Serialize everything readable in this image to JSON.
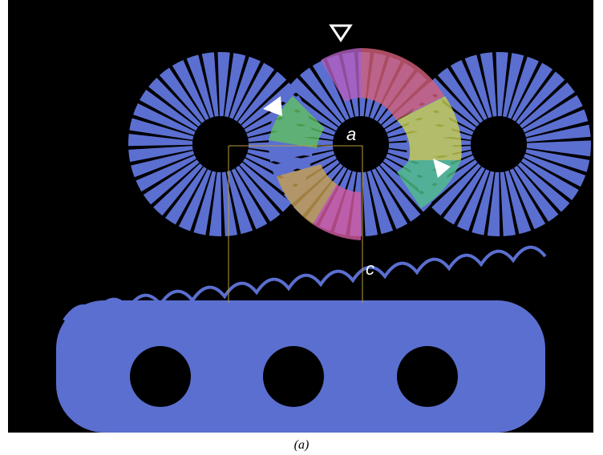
{
  "figure": {
    "labels": {
      "axis_a": "a",
      "axis_c": "c"
    },
    "caption": "(a)"
  }
}
